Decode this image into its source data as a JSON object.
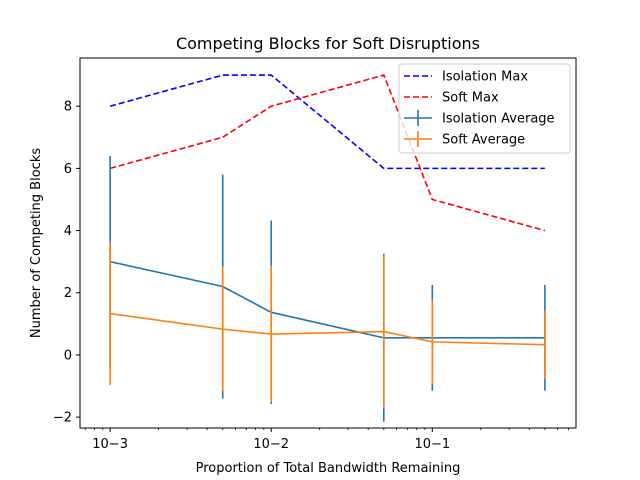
{
  "chart_data": {
    "type": "line",
    "title": "Competing Blocks for Soft Disruptions",
    "xlabel": "Proportion of Total Bandwidth Remaining",
    "ylabel": "Number of Competing Blocks",
    "xscale": "log",
    "xlim": [
      0.00065,
      0.78
    ],
    "ylim": [
      -2.35,
      9.55
    ],
    "x": [
      0.001,
      0.005,
      0.01,
      0.05,
      0.1,
      0.5
    ],
    "x_tick_values": [
      0.001,
      0.01,
      0.1
    ],
    "x_tick_labels": [
      "10−3",
      "10−2",
      "10−1"
    ],
    "y_ticks": [
      -2,
      0,
      2,
      4,
      6,
      8
    ],
    "legend_position": "upper right",
    "grid": false,
    "series": [
      {
        "name": "Isolation Max",
        "style": "dashed",
        "color": "#0000ff",
        "values": [
          8,
          9,
          9,
          6,
          6,
          6
        ]
      },
      {
        "name": "Soft Max",
        "style": "dashed",
        "color": "#ff0000",
        "values": [
          6,
          7,
          8,
          9,
          5,
          4
        ]
      },
      {
        "name": "Isolation Average",
        "style": "solid",
        "color": "#1f77b4",
        "values": [
          3.0,
          2.2,
          1.37,
          0.55,
          0.55,
          0.55
        ],
        "error": [
          3.4,
          3.6,
          2.95,
          2.7,
          1.7,
          1.7
        ]
      },
      {
        "name": "Soft Average",
        "style": "solid",
        "color": "#ff7f0e",
        "values": [
          1.33,
          0.83,
          0.67,
          0.75,
          0.42,
          0.33
        ],
        "error": [
          2.3,
          2.0,
          2.2,
          2.45,
          1.35,
          1.1
        ]
      }
    ]
  }
}
